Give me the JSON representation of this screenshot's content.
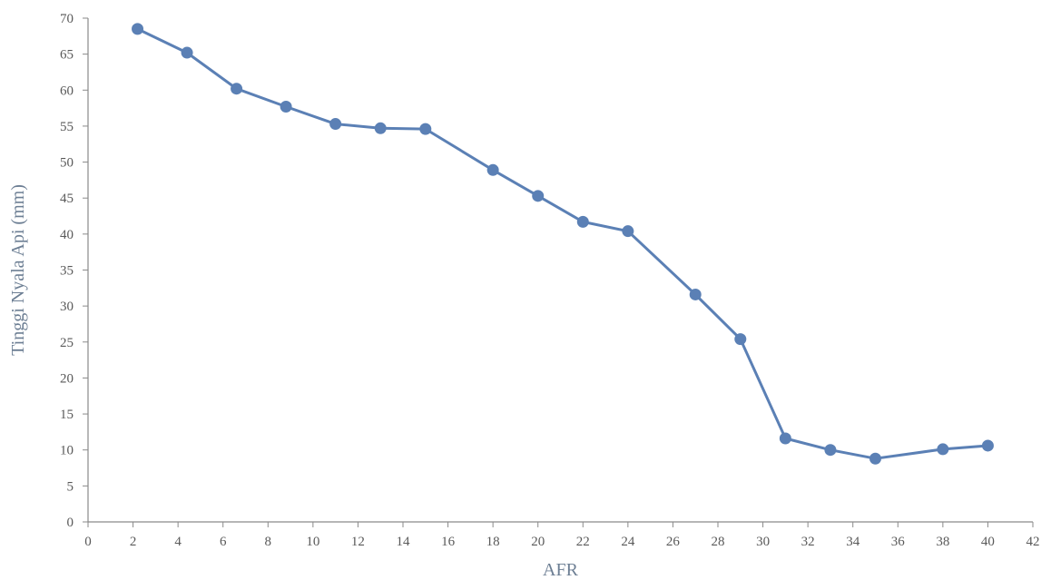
{
  "chart_data": {
    "type": "line",
    "title": "",
    "xlabel": "AFR",
    "ylabel": "Tinggi Nyala Api (mm)",
    "xlim": [
      0,
      42
    ],
    "ylim": [
      0,
      70
    ],
    "x_ticks": [
      0,
      2,
      4,
      6,
      8,
      10,
      12,
      14,
      16,
      18,
      20,
      22,
      24,
      26,
      28,
      30,
      32,
      34,
      36,
      38,
      40,
      42
    ],
    "y_ticks": [
      0,
      5,
      10,
      15,
      20,
      25,
      30,
      35,
      40,
      45,
      50,
      55,
      60,
      65,
      70
    ],
    "grid": false,
    "legend": "none",
    "color": "#5b80b5",
    "series": [
      {
        "x": [
          2.2,
          4.4,
          6.6,
          8.8,
          11,
          13,
          15,
          18,
          20,
          22,
          24,
          27,
          29,
          31,
          33,
          35,
          38,
          40
        ],
        "y": [
          68.5,
          65.2,
          60.2,
          57.7,
          55.3,
          54.7,
          54.6,
          48.9,
          45.3,
          41.7,
          40.4,
          31.6,
          25.4,
          11.6,
          10.0,
          8.8,
          10.1,
          10.6
        ]
      }
    ]
  }
}
